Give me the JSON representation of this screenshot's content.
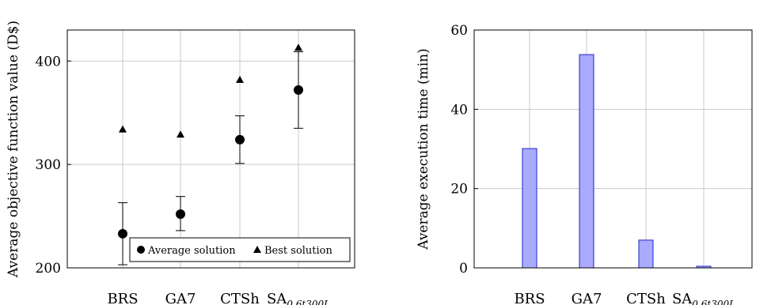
{
  "chart_data": [
    {
      "type": "scatter",
      "ylabel": "Average objective function value (D$)",
      "ylim": [
        200,
        430
      ],
      "yticks": [
        200,
        300,
        400
      ],
      "grid": true,
      "categories": [
        {
          "base": "BRS",
          "sub": ""
        },
        {
          "base": "GA7",
          "sub": ""
        },
        {
          "base": "CTSh",
          "sub": ""
        },
        {
          "base": "SA",
          "sub": "0.6t300L"
        }
      ],
      "legend_position": "bottom-right",
      "series": [
        {
          "name": "Average solution",
          "marker": "circle",
          "values": [
            233,
            252,
            324,
            372
          ],
          "error_low": [
            203,
            236,
            301,
            335
          ],
          "error_high": [
            263,
            269,
            347,
            409
          ]
        },
        {
          "name": "Best solution",
          "marker": "triangle",
          "values": [
            334,
            329,
            382,
            413
          ]
        }
      ]
    },
    {
      "type": "bar",
      "ylabel": "Average execution time (min)",
      "ylim": [
        0,
        60
      ],
      "yticks": [
        0,
        20,
        40,
        60
      ],
      "grid": true,
      "categories": [
        {
          "base": "BRS",
          "sub": ""
        },
        {
          "base": "GA7",
          "sub": ""
        },
        {
          "base": "CTSh",
          "sub": ""
        },
        {
          "base": "SA",
          "sub": "0.6t300L"
        }
      ],
      "values": [
        30.1,
        53.8,
        7.0,
        0.4
      ],
      "bar_color": "#aaaaff",
      "bar_edge": "#2222cc"
    }
  ]
}
